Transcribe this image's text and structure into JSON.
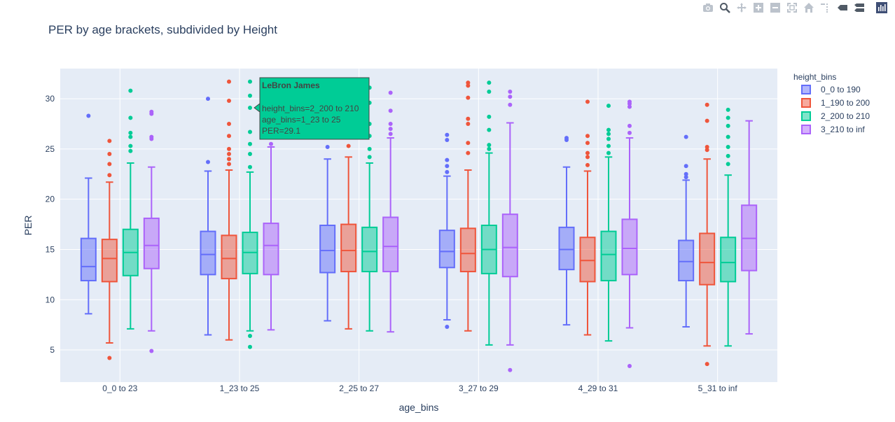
{
  "modebar": {
    "icons": [
      "camera-icon",
      "zoom-icon",
      "pan-icon",
      "zoom-in-icon",
      "zoom-out-icon",
      "autoscale-icon",
      "home-icon",
      "spike-lines-icon",
      "hover-closest-icon",
      "hover-compare-icon",
      "plotly-logo-icon"
    ]
  },
  "chart_data": {
    "type": "box",
    "title": "PER by age brackets, subdivided by Height",
    "xlabel": "age_bins",
    "ylabel": "PER",
    "ylim": [
      1.8,
      33.0
    ],
    "yticks": [
      5,
      10,
      15,
      20,
      25,
      30
    ],
    "categories": [
      "0_0 to 23",
      "1_23 to 25",
      "2_25 to 27",
      "3_27 to 29",
      "4_29 to 31",
      "5_31 to inf"
    ],
    "legend_title": "height_bins",
    "legend_position": "right",
    "series": [
      {
        "name": "0_0 to 190",
        "color": "#636efa",
        "boxes": [
          {
            "lf": 8.6,
            "q1": 11.9,
            "med": 13.3,
            "q3": 16.1,
            "uf": 22.1,
            "outliers": [
              28.3
            ]
          },
          {
            "lf": 6.5,
            "q1": 12.5,
            "med": 14.5,
            "q3": 16.8,
            "uf": 22.8,
            "outliers": [
              23.7,
              30.0
            ]
          },
          {
            "lf": 7.9,
            "q1": 12.7,
            "med": 14.9,
            "q3": 17.4,
            "uf": 24.0,
            "outliers": [
              25.2
            ]
          },
          {
            "lf": 8.0,
            "q1": 13.2,
            "med": 14.8,
            "q3": 16.9,
            "uf": 22.3,
            "outliers": [
              7.3,
              22.7,
              23.3,
              23.9,
              25.9,
              26.4
            ]
          },
          {
            "lf": 7.5,
            "q1": 13.0,
            "med": 15.0,
            "q3": 17.2,
            "uf": 23.2,
            "outliers": [
              25.9,
              26.1
            ]
          },
          {
            "lf": 7.3,
            "q1": 11.9,
            "med": 13.8,
            "q3": 15.9,
            "uf": 21.9,
            "outliers": [
              22.2,
              22.5,
              23.3,
              26.2
            ]
          }
        ]
      },
      {
        "name": "1_190 to 200",
        "color": "#ef553b",
        "boxes": [
          {
            "lf": 5.7,
            "q1": 11.8,
            "med": 14.1,
            "q3": 16.0,
            "uf": 21.7,
            "outliers": [
              4.2,
              22.4,
              23.5,
              24.5,
              25.8
            ]
          },
          {
            "lf": 6.0,
            "q1": 12.1,
            "med": 14.1,
            "q3": 16.4,
            "uf": 22.9,
            "outliers": [
              23.5,
              24.0,
              24.5,
              25.0,
              26.3,
              27.5,
              29.8,
              31.7
            ]
          },
          {
            "lf": 7.1,
            "q1": 12.8,
            "med": 14.9,
            "q3": 17.5,
            "uf": 24.2,
            "outliers": [
              25.3
            ]
          },
          {
            "lf": 6.9,
            "q1": 12.8,
            "med": 14.6,
            "q3": 17.1,
            "uf": 22.9,
            "outliers": [
              24.6,
              25.6,
              27.5,
              28.0,
              30.1,
              31.3,
              31.6
            ]
          },
          {
            "lf": 6.5,
            "q1": 11.8,
            "med": 13.9,
            "q3": 16.2,
            "uf": 22.8,
            "outliers": [
              23.4,
              24.2,
              24.6,
              25.6,
              26.3,
              29.7
            ]
          },
          {
            "lf": 5.4,
            "q1": 11.5,
            "med": 13.7,
            "q3": 16.6,
            "uf": 24.0,
            "outliers": [
              3.6,
              24.9,
              25.2,
              27.8,
              29.4
            ]
          }
        ]
      },
      {
        "name": "2_200 to 210",
        "color": "#00cc96",
        "boxes": [
          {
            "lf": 7.1,
            "q1": 12.4,
            "med": 14.7,
            "q3": 17.0,
            "uf": 23.6,
            "outliers": [
              24.8,
              25.3,
              26.2,
              26.6,
              28.1,
              30.8
            ]
          },
          {
            "lf": 6.9,
            "q1": 12.6,
            "med": 14.7,
            "q3": 16.7,
            "uf": 22.7,
            "outliers": [
              5.3,
              6.4,
              23.2,
              24.5,
              25.5,
              26.7,
              29.1,
              30.3,
              31.7
            ]
          },
          {
            "lf": 6.9,
            "q1": 12.8,
            "med": 14.8,
            "q3": 17.2,
            "uf": 23.6,
            "outliers": [
              24.2,
              25.0,
              26.3,
              27.5,
              29.6,
              31.1
            ]
          },
          {
            "lf": 5.5,
            "q1": 12.6,
            "med": 15.0,
            "q3": 17.4,
            "uf": 24.6,
            "outliers": [
              25.0,
              25.4,
              26.9,
              28.2,
              30.7,
              31.6
            ]
          },
          {
            "lf": 5.9,
            "q1": 11.9,
            "med": 14.5,
            "q3": 16.8,
            "uf": 24.2,
            "outliers": [
              24.6,
              25.3,
              26.0,
              26.5,
              26.9,
              29.3
            ]
          },
          {
            "lf": 5.4,
            "q1": 11.8,
            "med": 13.7,
            "q3": 16.2,
            "uf": 22.4,
            "outliers": [
              23.5,
              24.3,
              25.2,
              26.2,
              27.3,
              28.1,
              28.9
            ]
          }
        ]
      },
      {
        "name": "3_210 to inf",
        "color": "#ab63fa",
        "boxes": [
          {
            "lf": 6.9,
            "q1": 13.1,
            "med": 15.4,
            "q3": 18.1,
            "uf": 23.2,
            "outliers": [
              4.9,
              26.0,
              26.2,
              28.5,
              28.7
            ]
          },
          {
            "lf": 7.0,
            "q1": 12.5,
            "med": 15.4,
            "q3": 17.6,
            "uf": 25.2,
            "outliers": [
              25.5
            ]
          },
          {
            "lf": 6.8,
            "q1": 12.8,
            "med": 15.3,
            "q3": 18.2,
            "uf": 26.1,
            "outliers": [
              26.5,
              27.0,
              27.5,
              28.8,
              30.6
            ]
          },
          {
            "lf": 5.5,
            "q1": 12.3,
            "med": 15.2,
            "q3": 18.5,
            "uf": 27.6,
            "outliers": [
              3.0,
              29.4,
              30.2,
              30.7
            ]
          },
          {
            "lf": 7.2,
            "q1": 12.5,
            "med": 15.1,
            "q3": 18.0,
            "uf": 26.1,
            "outliers": [
              3.4,
              26.6,
              27.3,
              29.2,
              29.5,
              29.7
            ]
          },
          {
            "lf": 6.6,
            "q1": 12.9,
            "med": 16.1,
            "q3": 19.4,
            "uf": 27.8,
            "outliers": []
          }
        ]
      }
    ],
    "hover": {
      "series": 2,
      "category": 1,
      "title": "LeBron James",
      "lines": [
        "height_bins=2_200 to 210",
        "age_bins=1_23 to 25",
        "PER=29.1"
      ],
      "value": 29.1
    }
  }
}
